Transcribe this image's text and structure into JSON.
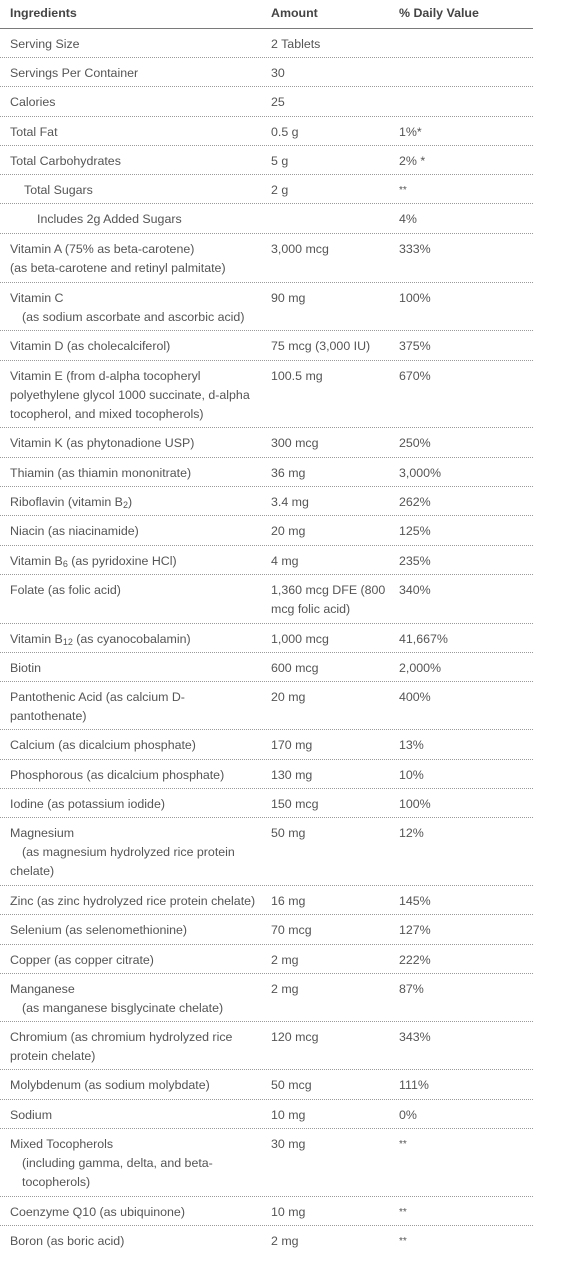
{
  "header": {
    "ingredients": "Ingredients",
    "amount": "Amount",
    "daily_value": "% Daily Value"
  },
  "rows": [
    {
      "name": "Serving Size",
      "amount": "2 Tablets",
      "dv": ""
    },
    {
      "name": "Servings Per Container",
      "amount": "30",
      "dv": ""
    },
    {
      "name": "Calories",
      "amount": "25",
      "dv": ""
    },
    {
      "name": "Total Fat",
      "amount": "0.5 g",
      "dv": "1%*"
    },
    {
      "name": "Total Carbohydrates",
      "amount": "5 g",
      "dv": "2% *"
    },
    {
      "name": "Total Sugars",
      "amount": "2 g",
      "dv": "**"
    },
    {
      "name": "Includes 2g Added Sugars",
      "amount": "",
      "dv": "4%"
    },
    {
      "name": "Vitamin A (75% as beta-carotene)",
      "name2": "(as beta-carotene and retinyl palmitate)",
      "amount": "3,000 mcg",
      "dv": "333%"
    },
    {
      "name": "Vitamin C",
      "name2": "(as sodium ascorbate and ascorbic acid)",
      "amount": "90 mg",
      "dv": "100%"
    },
    {
      "name": "Vitamin D (as cholecalciferol)",
      "amount": "75 mcg (3,000 IU)",
      "dv": "375%"
    },
    {
      "name": "Vitamin E (from d-alpha tocopheryl",
      "name2": "polyethylene glycol 1000 succinate, d-alpha",
      "name3": "tocopherol, and mixed tocopherols)",
      "amount": "100.5 mg",
      "dv": "670%"
    },
    {
      "name": "Vitamin K (as phytonadione USP)",
      "amount": "300 mcg",
      "dv": "250%"
    },
    {
      "name": "Thiamin (as thiamin mononitrate)",
      "amount": "36 mg",
      "dv": "3,000%"
    },
    {
      "name_pre": "Riboflavin (vitamin B",
      "name_sub": "2",
      "name_post": ")",
      "amount": "3.4 mg",
      "dv": "262%"
    },
    {
      "name": "Niacin (as niacinamide)",
      "amount": "20 mg",
      "dv": "125%"
    },
    {
      "name_pre": "Vitamin B",
      "name_sub": "6",
      "name_post": " (as pyridoxine HCl)",
      "amount": "4 mg",
      "dv": "235%"
    },
    {
      "name": "Folate (as folic acid)",
      "amount": "1,360 mcg DFE (800",
      "amount2": "mcg folic acid)",
      "dv": "340%"
    },
    {
      "name_pre": "Vitamin B",
      "name_sub": "12",
      "name_post": " (as cyanocobalamin)",
      "amount": "1,000 mcg",
      "dv": "41,667%"
    },
    {
      "name": "Biotin",
      "amount": "600 mcg",
      "dv": "2,000%"
    },
    {
      "name": "Pantothenic Acid (as calcium D-",
      "name2": "pantothenate)",
      "amount": "20 mg",
      "dv": "400%"
    },
    {
      "name": "Calcium (as dicalcium phosphate)",
      "amount": "170 mg",
      "dv": "13%"
    },
    {
      "name": "Phosphorous (as dicalcium phosphate)",
      "amount": "130 mg",
      "dv": "10%"
    },
    {
      "name": "Iodine (as potassium iodide)",
      "amount": "150 mcg",
      "dv": "100%"
    },
    {
      "name": "Magnesium",
      "name2": "(as magnesium hydrolyzed rice protein",
      "name3": "chelate)",
      "amount": "50 mg",
      "dv": "12%"
    },
    {
      "name": "Zinc (as zinc hydrolyzed rice protein chelate)",
      "amount": "16 mg",
      "dv": "145%"
    },
    {
      "name": "Selenium (as selenomethionine)",
      "amount": "70 mcg",
      "dv": "127%"
    },
    {
      "name": "Copper (as copper citrate)",
      "amount": "2 mg",
      "dv": "222%"
    },
    {
      "name": "Manganese",
      "name2": "(as manganese bisglycinate chelate)",
      "amount": "2 mg",
      "dv": "87%"
    },
    {
      "name": "Chromium (as chromium hydrolyzed rice",
      "name2": "protein chelate)",
      "amount": "120 mcg",
      "dv": "343%"
    },
    {
      "name": "Molybdenum (as sodium molybdate)",
      "amount": "50 mcg",
      "dv": "111%"
    },
    {
      "name": "Sodium",
      "amount": "10 mg",
      "dv": "0%"
    },
    {
      "name": "Mixed Tocopherols",
      "name2": "(including gamma, delta, and beta-",
      "name3": "tocopherols)",
      "amount": "30 mg",
      "dv": "**"
    },
    {
      "name": "Coenzyme Q10 (as ubiquinone)",
      "amount": "10 mg",
      "dv": "**"
    },
    {
      "name": "Boron (as boric acid)",
      "amount": "2 mg",
      "dv": "**"
    }
  ]
}
